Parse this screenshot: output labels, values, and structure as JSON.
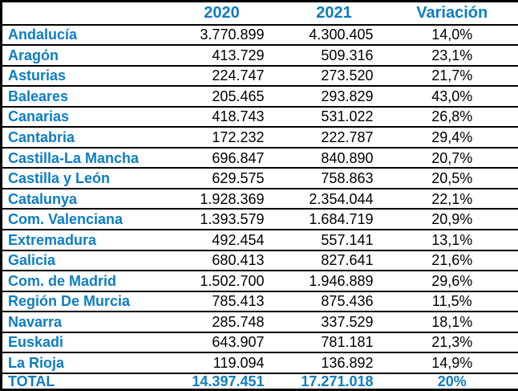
{
  "chart_data": {
    "type": "table",
    "columns": [
      "",
      "2020",
      "2021",
      "Variación"
    ],
    "rows": [
      [
        "Andalucía",
        "3.770.899",
        "4.300.405",
        "14,0%"
      ],
      [
        "Aragón",
        "413.729",
        "509.316",
        "23,1%"
      ],
      [
        "Asturias",
        "224.747",
        "273.520",
        "21,7%"
      ],
      [
        "Baleares",
        "205.465",
        "293.829",
        "43,0%"
      ],
      [
        "Canarias",
        "418.743",
        "531.022",
        "26,8%"
      ],
      [
        "Cantabria",
        "172.232",
        "222.787",
        "29,4%"
      ],
      [
        "Castilla-La Mancha",
        "696.847",
        "840.890",
        "20,7%"
      ],
      [
        "Castilla y León",
        "629.575",
        "758.863",
        "20,5%"
      ],
      [
        "Catalunya",
        "1.928.369",
        "2.354.044",
        "22,1%"
      ],
      [
        "Com. Valenciana",
        "1.393.579",
        "1.684.719",
        "20,9%"
      ],
      [
        "Extremadura",
        "492.454",
        "557.141",
        "13,1%"
      ],
      [
        "Galicia",
        "680.413",
        "827.641",
        "21,6%"
      ],
      [
        "Com. de Madrid",
        "1.502.700",
        "1.946.889",
        "29,6%"
      ],
      [
        "Región De Murcia",
        "785.413",
        "875.436",
        "11,5%"
      ],
      [
        "Navarra",
        "285.748",
        "337.529",
        "18,1%"
      ],
      [
        "Euskadi",
        "643.907",
        "781.181",
        "21,3%"
      ],
      [
        "La Rioja",
        "119.094",
        "136.892",
        "14,9%"
      ]
    ],
    "total_row": [
      "TOTAL",
      "14.397.451",
      "17.271.018",
      "20%"
    ]
  },
  "colors": {
    "accent_blue": "#0e7dc2",
    "text_black": "#000000",
    "border": "#000000",
    "background": "#ffffff"
  }
}
